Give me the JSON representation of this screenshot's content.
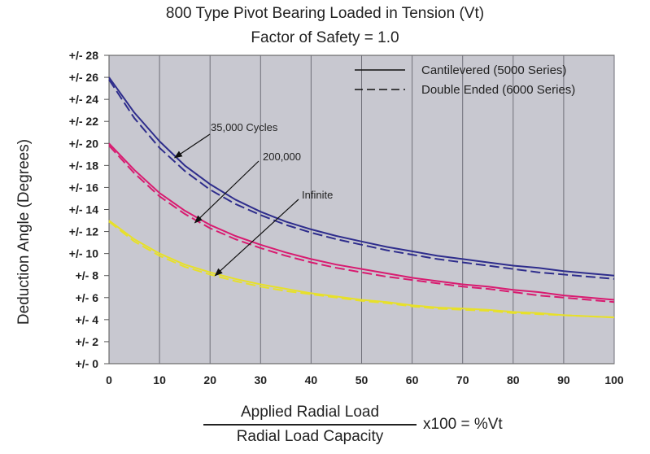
{
  "chart_data": {
    "type": "line",
    "title": "800 Type Pivot Bearing Loaded in Tension (Vt)",
    "subtitle": "Factor of Safety = 1.0",
    "ylabel": "Deduction Angle (Degrees)",
    "xlabel": {
      "numerator": "Applied Radial Load",
      "denominator": "Radial Load Capacity",
      "suffix": "x100 = %Vt"
    },
    "xlim": [
      0,
      100
    ],
    "ylim": [
      0,
      28
    ],
    "x_ticks": [
      0,
      10,
      20,
      30,
      40,
      50,
      60,
      70,
      80,
      90,
      100
    ],
    "y_ticks": [
      0,
      2,
      4,
      6,
      8,
      10,
      12,
      14,
      16,
      18,
      20,
      22,
      24,
      26,
      28
    ],
    "y_tick_labels": [
      "+/- 0",
      "+/- 2",
      "+/- 4",
      "+/- 6",
      "+/- 8",
      "+/- 10",
      "+/- 12",
      "+/- 14",
      "+/- 16",
      "+/- 18",
      "+/- 20",
      "+/- 22",
      "+/- 24",
      "+/- 26",
      "+/- 28"
    ],
    "grid": "vertical",
    "background": "#c8c8d0",
    "legend": {
      "position": "top-right",
      "entries": [
        {
          "label": "Cantilevered (5000 Series)",
          "style": "solid"
        },
        {
          "label": "Double Ended (6000 Series)",
          "style": "dashed"
        }
      ]
    },
    "annotations": [
      {
        "text": "35,000 Cycles",
        "arrow_to": [
          13,
          18.7
        ]
      },
      {
        "text": "200,000",
        "arrow_to": [
          17,
          12.8
        ]
      },
      {
        "text": "Infinite",
        "arrow_to": [
          21,
          8.0
        ]
      }
    ],
    "x": [
      0,
      5,
      10,
      15,
      20,
      25,
      30,
      35,
      40,
      45,
      50,
      55,
      60,
      65,
      70,
      75,
      80,
      85,
      90,
      95,
      100
    ],
    "series": [
      {
        "group": "35,000 Cycles",
        "style": "solid",
        "color": "#2e2d8c",
        "values": [
          26.0,
          22.8,
          20.2,
          18.0,
          16.3,
          14.9,
          13.8,
          12.9,
          12.2,
          11.6,
          11.1,
          10.6,
          10.2,
          9.8,
          9.5,
          9.2,
          8.9,
          8.7,
          8.4,
          8.2,
          8.0
        ]
      },
      {
        "group": "35,000 Cycles",
        "style": "dashed",
        "color": "#2e2d8c",
        "values": [
          25.8,
          22.3,
          19.6,
          17.5,
          15.8,
          14.5,
          13.5,
          12.6,
          11.9,
          11.3,
          10.8,
          10.3,
          9.9,
          9.5,
          9.2,
          8.9,
          8.6,
          8.3,
          8.1,
          7.9,
          7.7
        ]
      },
      {
        "group": "200,000",
        "style": "solid",
        "color": "#d81b70",
        "values": [
          20.0,
          17.6,
          15.5,
          13.9,
          12.6,
          11.6,
          10.8,
          10.1,
          9.5,
          9.0,
          8.6,
          8.2,
          7.8,
          7.5,
          7.2,
          7.0,
          6.7,
          6.5,
          6.2,
          6.0,
          5.8
        ]
      },
      {
        "group": "200,000",
        "style": "dashed",
        "color": "#d81b70",
        "values": [
          19.8,
          17.3,
          15.2,
          13.6,
          12.3,
          11.3,
          10.5,
          9.8,
          9.2,
          8.7,
          8.3,
          7.9,
          7.6,
          7.3,
          7.0,
          6.8,
          6.5,
          6.2,
          6.0,
          5.8,
          5.6
        ]
      },
      {
        "group": "Infinite",
        "style": "solid",
        "color": "#e7e02a",
        "values": [
          13.0,
          11.3,
          10.0,
          9.0,
          8.3,
          7.7,
          7.2,
          6.8,
          6.4,
          6.1,
          5.8,
          5.6,
          5.3,
          5.1,
          5.0,
          4.9,
          4.7,
          4.6,
          4.4,
          4.3,
          4.2
        ]
      },
      {
        "group": "Infinite",
        "style": "dashed",
        "color": "#e7e02a",
        "values": [
          12.9,
          11.1,
          9.8,
          8.8,
          8.1,
          7.5,
          7.0,
          6.6,
          6.3,
          6.0,
          5.7,
          5.5,
          5.2,
          5.0,
          4.9,
          4.8,
          4.6,
          4.5,
          4.4,
          4.3,
          4.2
        ]
      }
    ]
  }
}
